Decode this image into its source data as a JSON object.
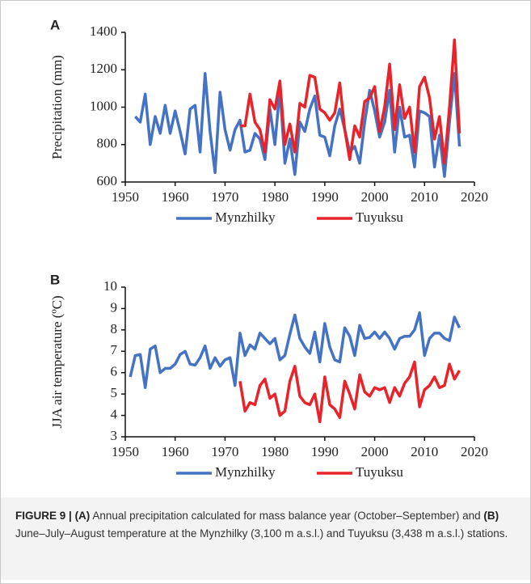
{
  "chart_data": [
    {
      "type": "line",
      "panel_label": "A",
      "ylabel": "Precipitation (mm)",
      "x": [
        1952,
        1953,
        1954,
        1955,
        1956,
        1957,
        1958,
        1959,
        1960,
        1961,
        1962,
        1963,
        1964,
        1965,
        1966,
        1967,
        1968,
        1969,
        1970,
        1971,
        1972,
        1973,
        1974,
        1975,
        1976,
        1977,
        1978,
        1979,
        1980,
        1981,
        1982,
        1983,
        1984,
        1985,
        1986,
        1987,
        1988,
        1989,
        1990,
        1991,
        1992,
        1993,
        1994,
        1995,
        1996,
        1997,
        1998,
        1999,
        2000,
        2001,
        2002,
        2003,
        2004,
        2005,
        2006,
        2007,
        2008,
        2009,
        2010,
        2011,
        2012,
        2013,
        2014,
        2015,
        2016,
        2017
      ],
      "series": [
        {
          "name": "Mynzhilky",
          "color": "#4472c4",
          "values": [
            950,
            920,
            1070,
            800,
            950,
            860,
            1010,
            860,
            980,
            870,
            750,
            990,
            1010,
            760,
            1180,
            870,
            650,
            1080,
            880,
            770,
            880,
            930,
            760,
            770,
            860,
            830,
            720,
            990,
            800,
            1100,
            700,
            830,
            640,
            920,
            870,
            990,
            1060,
            850,
            840,
            740,
            900,
            990,
            880,
            760,
            790,
            700,
            920,
            1090,
            980,
            840,
            920,
            1090,
            760,
            1000,
            840,
            850,
            680,
            980,
            970,
            950,
            680,
            850,
            630,
            920,
            1180,
            790
          ]
        },
        {
          "name": "Tuyuksu",
          "color": "#e8232a",
          "values": [
            null,
            null,
            null,
            null,
            null,
            null,
            null,
            null,
            null,
            null,
            null,
            null,
            null,
            null,
            null,
            null,
            null,
            null,
            null,
            null,
            null,
            900,
            900,
            1070,
            920,
            880,
            760,
            1040,
            990,
            1140,
            800,
            910,
            760,
            1020,
            1000,
            1170,
            1160,
            990,
            970,
            930,
            970,
            1130,
            880,
            720,
            900,
            840,
            1030,
            1050,
            1110,
            870,
            1000,
            1230,
            880,
            1120,
            940,
            1000,
            760,
            1110,
            1160,
            1050,
            830,
            950,
            700,
            1000,
            1360,
            860
          ]
        }
      ],
      "xlim": [
        1950,
        2020
      ],
      "xticks": [
        1950,
        1960,
        1970,
        1980,
        1990,
        2000,
        2010,
        2020
      ],
      "ylim": [
        600,
        1400
      ],
      "yticks": [
        600,
        800,
        1000,
        1200,
        1400
      ],
      "legend": "bottom"
    },
    {
      "type": "line",
      "panel_label": "B",
      "ylabel": "JJA air temperature (ºC)",
      "x": [
        1951,
        1952,
        1953,
        1954,
        1955,
        1956,
        1957,
        1958,
        1959,
        1960,
        1961,
        1962,
        1963,
        1964,
        1965,
        1966,
        1967,
        1968,
        1969,
        1970,
        1971,
        1972,
        1973,
        1974,
        1975,
        1976,
        1977,
        1978,
        1979,
        1980,
        1981,
        1982,
        1983,
        1984,
        1985,
        1986,
        1987,
        1988,
        1989,
        1990,
        1991,
        1992,
        1993,
        1994,
        1995,
        1996,
        1997,
        1998,
        1999,
        2000,
        2001,
        2002,
        2003,
        2004,
        2005,
        2006,
        2007,
        2008,
        2009,
        2010,
        2011,
        2012,
        2013,
        2014,
        2015,
        2016,
        2017
      ],
      "series": [
        {
          "name": "Mynzhilky",
          "color": "#4472c4",
          "values": [
            5.8,
            6.8,
            6.85,
            5.3,
            7.1,
            7.25,
            6.0,
            6.2,
            6.2,
            6.4,
            6.85,
            7.0,
            6.4,
            6.35,
            6.7,
            7.25,
            6.2,
            6.7,
            6.3,
            6.6,
            6.7,
            5.4,
            7.85,
            6.8,
            7.3,
            7.1,
            7.85,
            7.6,
            7.35,
            7.6,
            6.6,
            6.8,
            7.8,
            8.7,
            7.6,
            7.2,
            6.9,
            7.9,
            6.5,
            8.3,
            7.2,
            6.6,
            6.5,
            8.1,
            7.7,
            6.8,
            8.2,
            7.6,
            7.65,
            7.9,
            7.6,
            7.9,
            7.6,
            7.1,
            7.6,
            7.7,
            7.7,
            8.0,
            8.8,
            6.8,
            7.6,
            7.85,
            7.85,
            7.6,
            7.5,
            8.6,
            8.1
          ]
        },
        {
          "name": "Tuyuksu",
          "color": "#e8232a",
          "values": [
            null,
            null,
            null,
            null,
            null,
            null,
            null,
            null,
            null,
            null,
            null,
            null,
            null,
            null,
            null,
            null,
            null,
            null,
            null,
            null,
            null,
            null,
            5.6,
            4.2,
            4.6,
            4.5,
            5.4,
            5.7,
            4.8,
            5.0,
            4.0,
            4.2,
            5.6,
            6.3,
            4.9,
            4.6,
            4.5,
            5.0,
            3.7,
            5.8,
            4.5,
            4.3,
            3.9,
            5.6,
            5.0,
            4.3,
            5.9,
            5.1,
            4.9,
            5.3,
            5.2,
            5.3,
            4.6,
            5.3,
            4.9,
            5.5,
            5.8,
            6.5,
            4.4,
            5.2,
            5.4,
            5.8,
            5.3,
            5.4,
            6.4,
            5.7,
            6.1
          ]
        }
      ],
      "xlim": [
        1950,
        2020
      ],
      "xticks": [
        1950,
        1960,
        1970,
        1980,
        1990,
        2000,
        2010,
        2020
      ],
      "ylim": [
        3,
        10
      ],
      "yticks": [
        3,
        4,
        5,
        6,
        7,
        8,
        9,
        10
      ],
      "legend": "bottom"
    }
  ],
  "caption": {
    "figure": "FIGURE 9 |",
    "a": "(A)",
    "text1": "Annual precipitation calculated for mass balance year (October–September) and",
    "b": "(B)",
    "text2": "June–July–August temperature at the Mynzhilky (3,100 m a.s.l.) and Tuyuksu (3,438 m a.s.l.) stations."
  }
}
